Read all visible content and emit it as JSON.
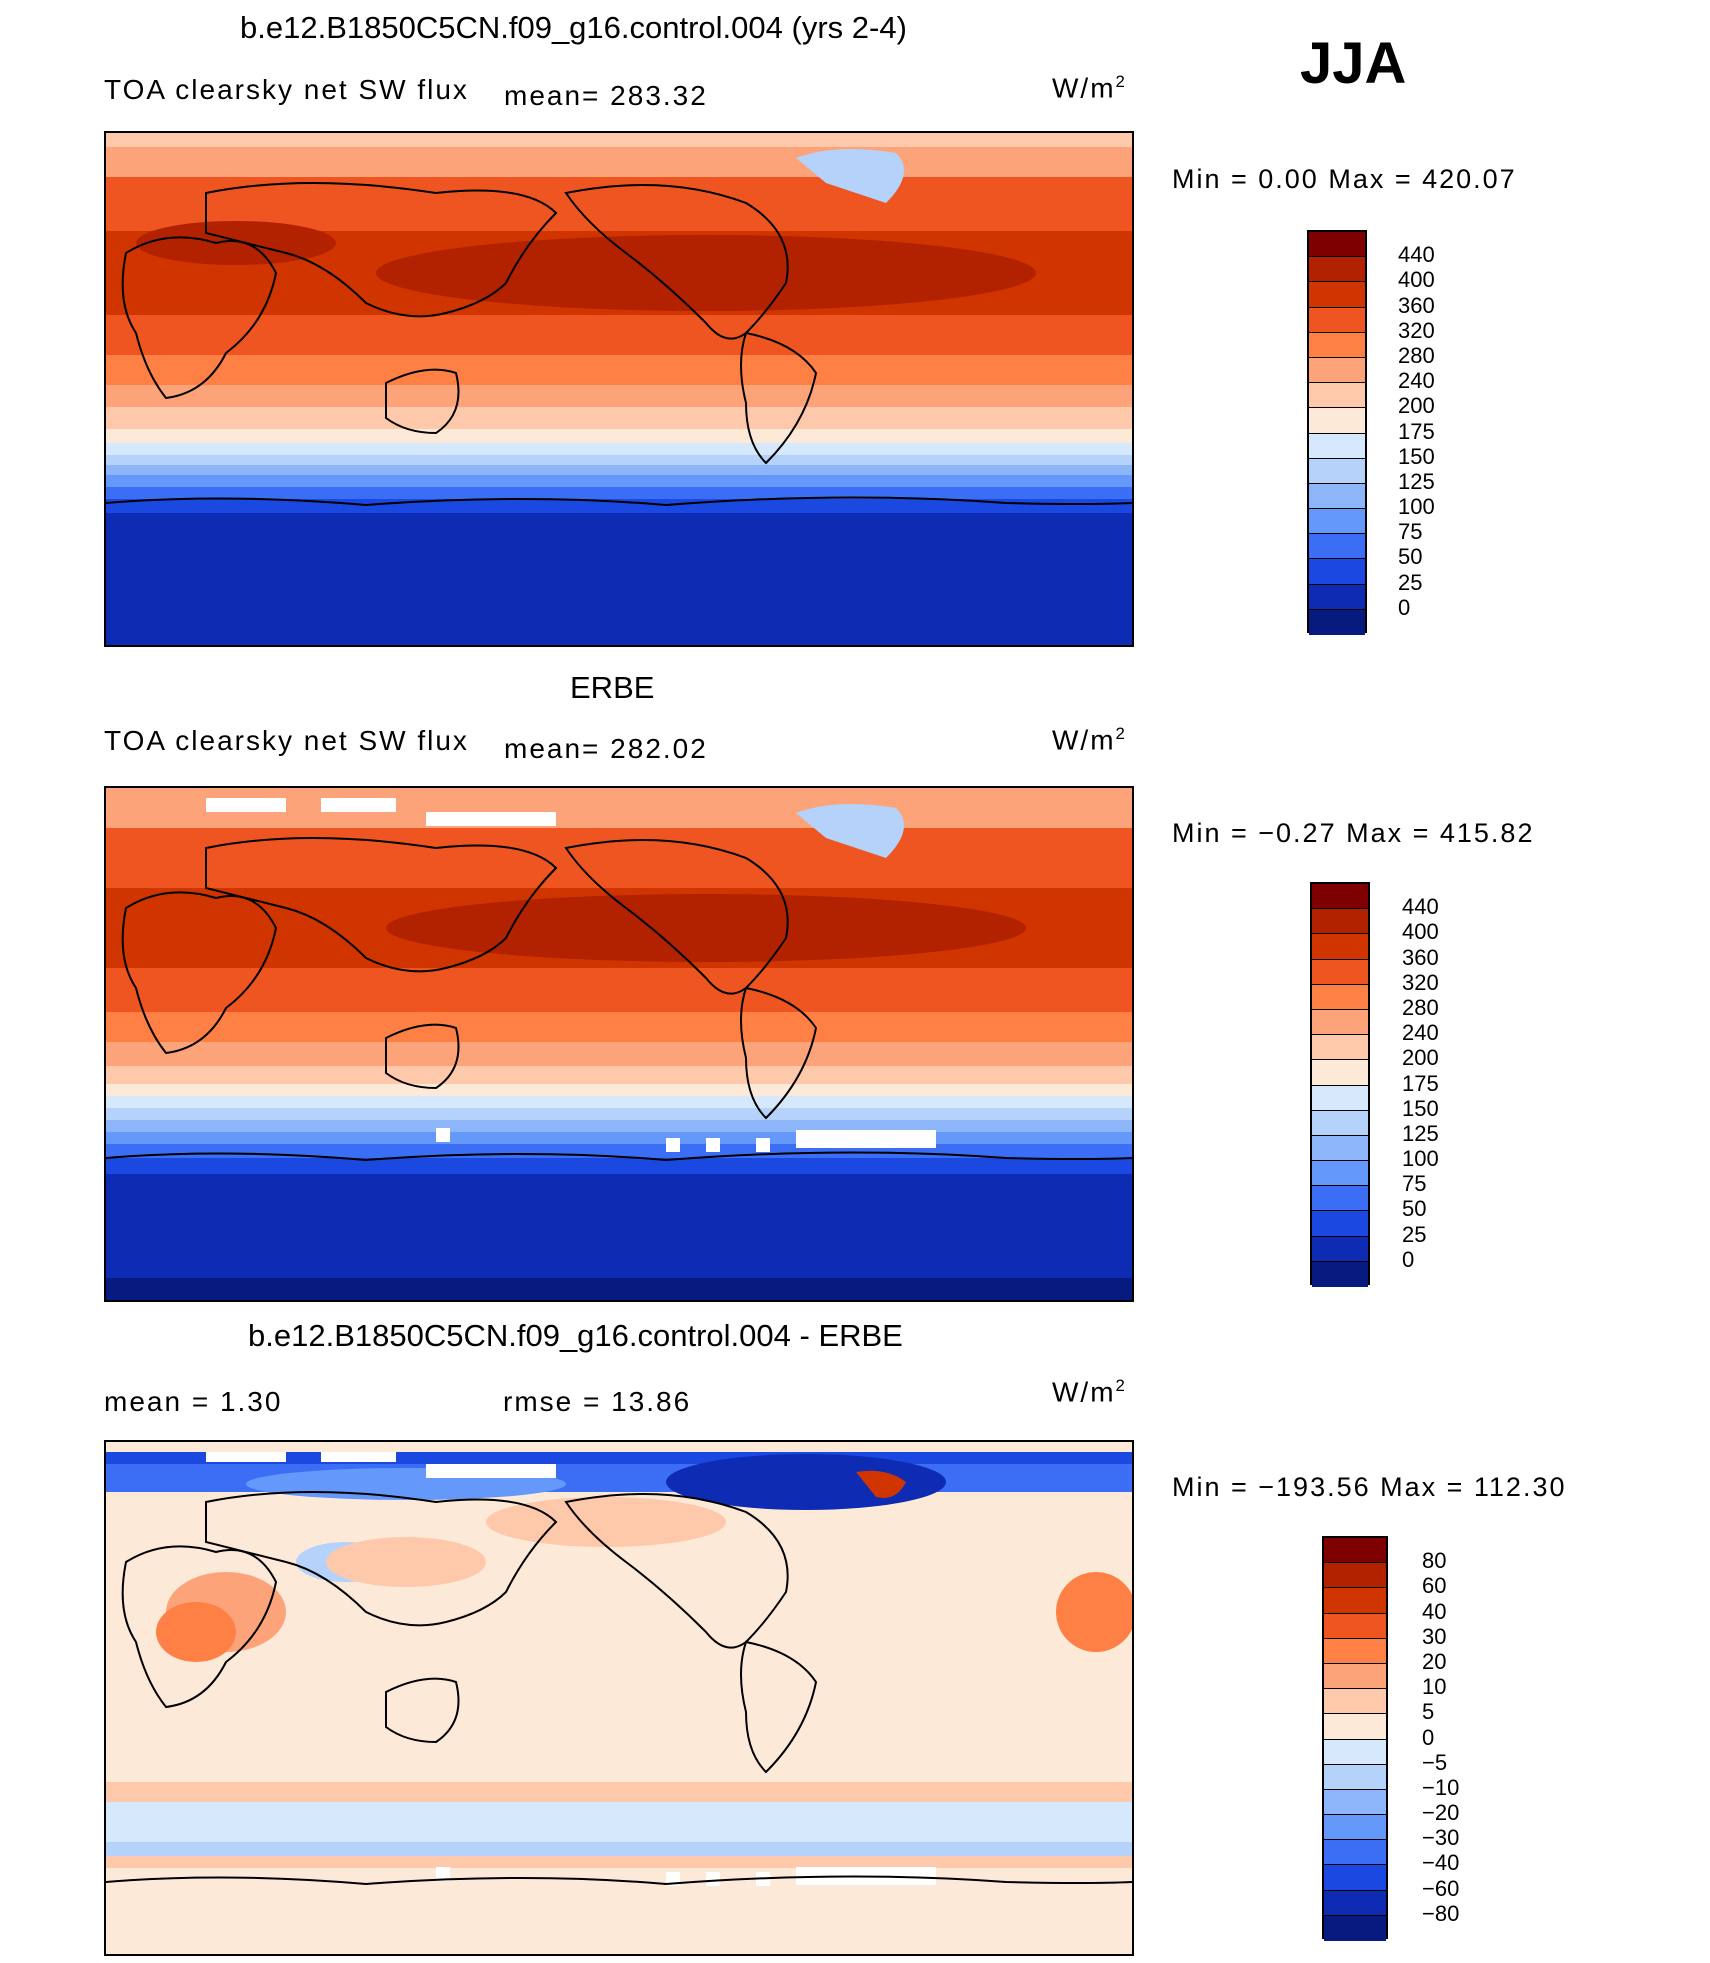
{
  "season": "JJA",
  "panels": [
    {
      "title": "b.e12.B1850C5CN.f09_g16.control.004 (yrs 2-4)",
      "left_text": "TOA clearsky net SW flux",
      "stat_text": "mean= 283.32",
      "units": "W/m",
      "units_sup": "2",
      "minmax": "Min =    0.00 Max = 420.07"
    },
    {
      "title": "ERBE",
      "left_text": "TOA clearsky net SW flux",
      "stat_text": "mean= 282.02",
      "units": "W/m",
      "units_sup": "2",
      "minmax": "Min =  −0.27 Max = 415.82"
    },
    {
      "title": "b.e12.B1850C5CN.f09_g16.control.004 - ERBE",
      "left_text": "mean =    1.30",
      "stat_text": "rmse =   13.86",
      "units": "W/m",
      "units_sup": "2",
      "minmax": "Min = −193.56 Max = 112.30"
    }
  ],
  "colorbars": {
    "flux": {
      "labels": [
        "440",
        "400",
        "360",
        "320",
        "280",
        "240",
        "200",
        "175",
        "150",
        "125",
        "100",
        "75",
        "50",
        "25",
        "0"
      ],
      "colors": [
        "#7f0000",
        "#b22200",
        "#d03500",
        "#ee5520",
        "#ff8044",
        "#fca37a",
        "#fec8aa",
        "#fde9d8",
        "#d6e8fb",
        "#b4d2fa",
        "#8db6fa",
        "#6598fb",
        "#3b6ef5",
        "#1a48e0",
        "#0d2cb3",
        "#061a80"
      ]
    },
    "diff": {
      "labels": [
        "80",
        "60",
        "40",
        "30",
        "20",
        "10",
        "5",
        "0",
        "−5",
        "−10",
        "−20",
        "−30",
        "−40",
        "−60",
        "−80"
      ],
      "colors": [
        "#7f0000",
        "#b22200",
        "#d03500",
        "#ee5520",
        "#ff8044",
        "#fca37a",
        "#fec8aa",
        "#fde9d8",
        "#d6e8fb",
        "#b4d2fa",
        "#8db6fa",
        "#6598fb",
        "#3b6ef5",
        "#1a48e0",
        "#0d2cb3",
        "#061a80"
      ]
    }
  }
}
